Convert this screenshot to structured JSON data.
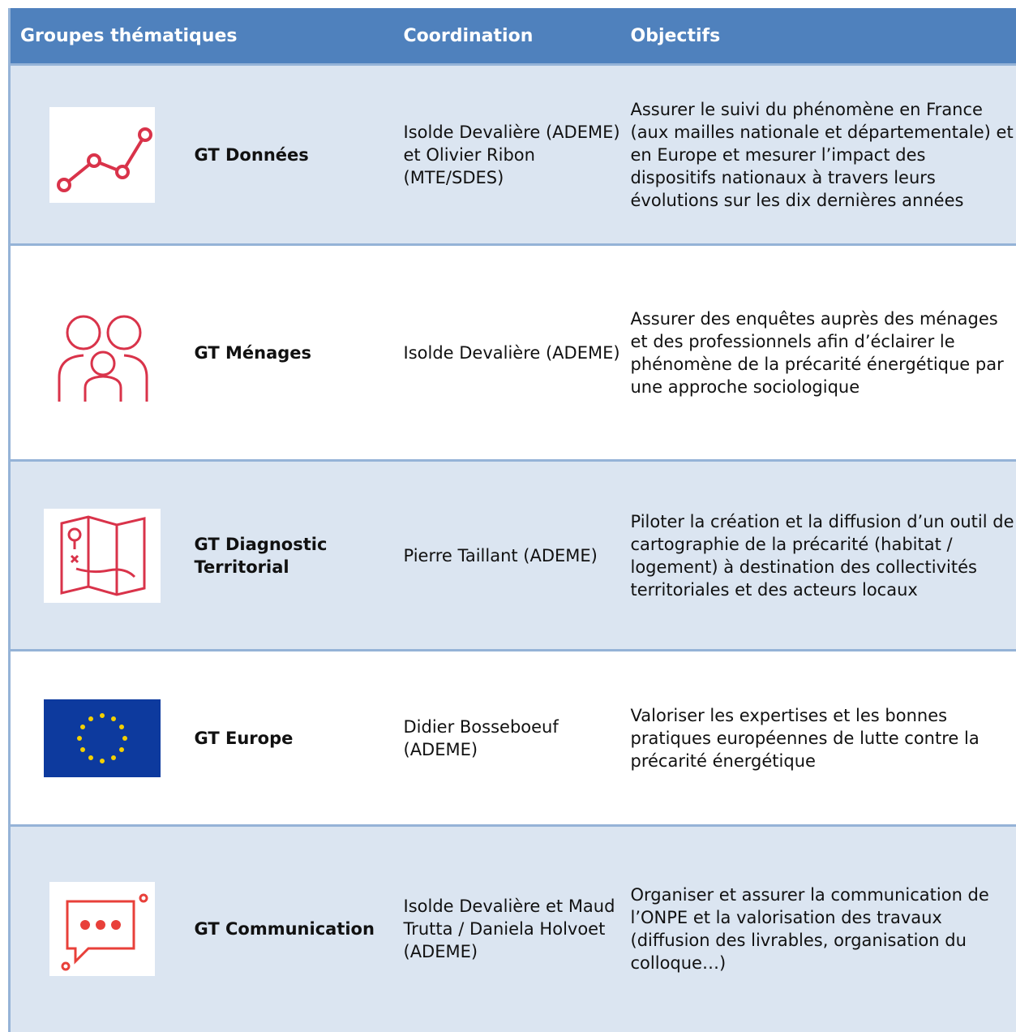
{
  "table": {
    "header": [
      "Groupes thématiques",
      "Coordination",
      "Objectifs"
    ],
    "rows": [
      [
        "GT Données",
        "Isolde Devalière (ADEME) et Olivier Ribon (MTE/SDES)",
        "Assurer le suivi du phénomène en France (aux mailles nationale et départementale) et en Europe et mesurer l’impact des dispositifs nationaux à travers leurs évolutions sur les dix dernières années"
      ],
      [
        "GT Ménages",
        "Isolde Devalière (ADEME)",
        "Assurer des enquêtes auprès des ménages et des professionnels afin d’éclairer le phénomène de la précarité énergétique par une approche sociologique"
      ],
      [
        "GT Diagnostic Territorial",
        "Pierre Taillant (ADEME)",
        "Piloter la création et la diffusion d’un outil de cartographie de la précarité (habitat / logement) à destination des collectivités territoriales et des acteurs locaux"
      ],
      [
        "GT Europe",
        "Didier Bosseboeuf (ADEME)",
        "Valoriser les expertises et les bonnes pratiques européennes de lutte contre la précarité énergétique"
      ],
      [
        "GT Communication",
        "Isolde Devalière et Maud Trutta / Daniela Holvoet (ADEME)",
        "Organiser et assurer la communication de l’ONPE et la valorisation des travaux (diffusion des livrables, organisation du colloque…)"
      ]
    ]
  }
}
